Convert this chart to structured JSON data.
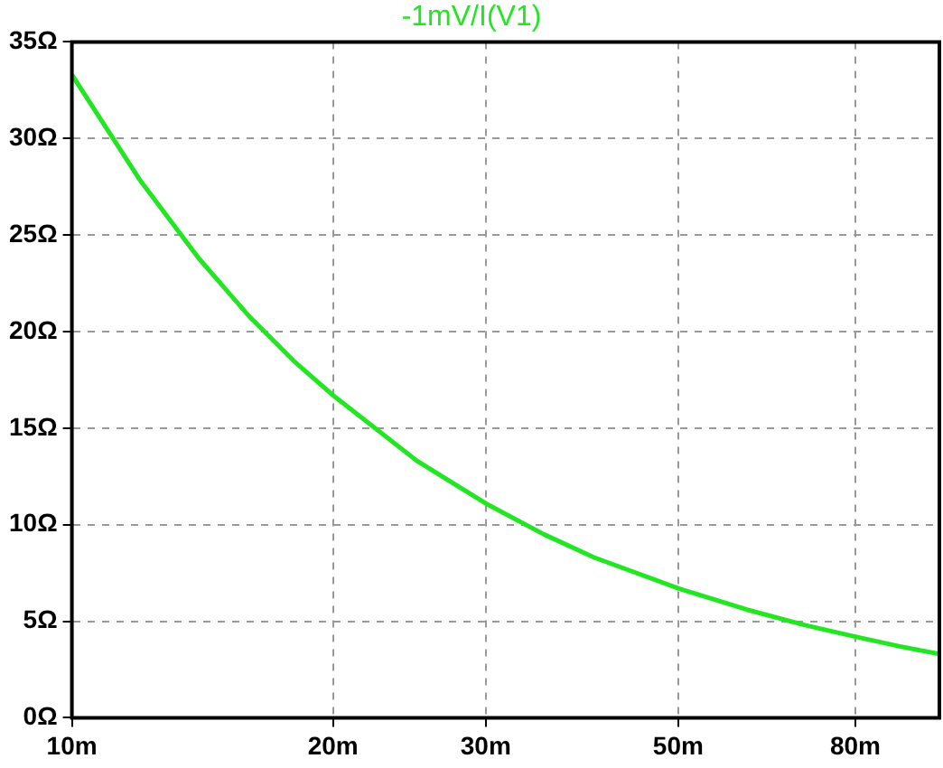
{
  "chart_data": {
    "type": "line",
    "title": "-1mV/I(V1)",
    "log": "x",
    "grid": true,
    "legend": false,
    "marker": "none",
    "line_style": "solid",
    "xlim": [
      10,
      100
    ],
    "xticks": [
      {
        "value": 10,
        "label": "10m"
      },
      {
        "value": 20,
        "label": "20m"
      },
      {
        "value": 30,
        "label": "30m"
      },
      {
        "value": 50,
        "label": "50m"
      },
      {
        "value": 80,
        "label": "80m"
      }
    ],
    "ylim": [
      0,
      35
    ],
    "yticks": [
      {
        "value": 0,
        "label": "0Ω"
      },
      {
        "value": 5,
        "label": "5Ω"
      },
      {
        "value": 10,
        "label": "10Ω"
      },
      {
        "value": 15,
        "label": "15Ω"
      },
      {
        "value": 20,
        "label": "20Ω"
      },
      {
        "value": 25,
        "label": "25Ω"
      },
      {
        "value": 30,
        "label": "30Ω"
      },
      {
        "value": 35,
        "label": "35Ω"
      }
    ],
    "series": [
      {
        "color": "#22e622",
        "x": [
          10,
          12,
          14,
          16,
          18,
          20,
          25,
          30,
          35,
          40,
          50,
          60,
          70,
          80,
          90,
          100
        ],
        "values": [
          33.3,
          27.8,
          23.8,
          20.8,
          18.5,
          16.7,
          13.3,
          11.1,
          9.5,
          8.3,
          6.7,
          5.6,
          4.8,
          4.2,
          3.7,
          3.3
        ]
      }
    ]
  }
}
